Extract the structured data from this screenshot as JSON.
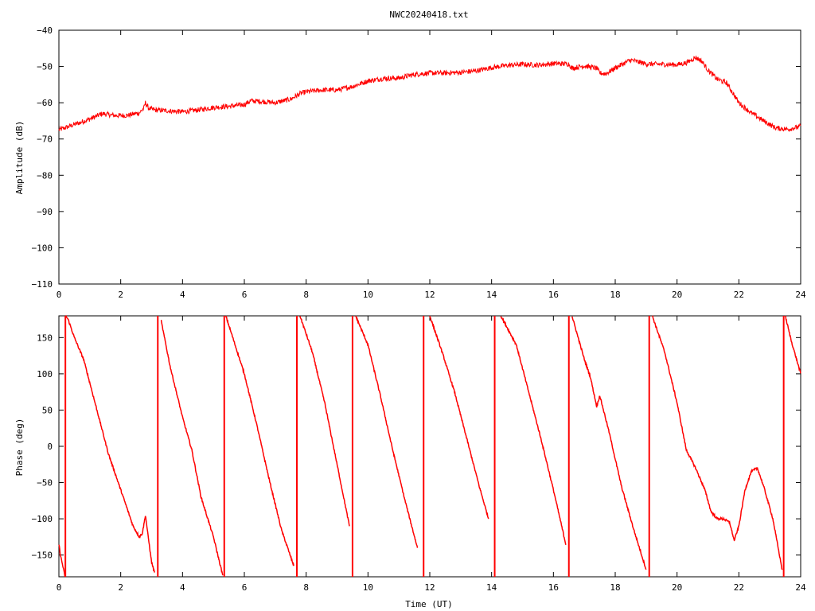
{
  "title": "NWC20240418.txt",
  "colors": {
    "series": "#ff0000",
    "frame": "#000000",
    "background": "#ffffff"
  },
  "chart_data": [
    {
      "type": "line",
      "panel": "top",
      "title": "NWC20240418.txt",
      "xlabel": "",
      "ylabel": "Amplitude (dB)",
      "xlim": [
        0,
        24
      ],
      "ylim": [
        -110,
        -40
      ],
      "xticks": [
        "0",
        "2",
        "4",
        "6",
        "8",
        "10",
        "12",
        "14",
        "16",
        "18",
        "20",
        "22",
        "24"
      ],
      "yticks": [
        "-40",
        "-50",
        "-60",
        "-70",
        "-80",
        "-90",
        "-100",
        "-110"
      ],
      "grid": false,
      "x": [
        0,
        0.5,
        1.0,
        1.4,
        1.8,
        2.2,
        2.6,
        2.75,
        2.8,
        2.9,
        3.1,
        3.5,
        4.0,
        4.5,
        5.0,
        5.5,
        6.0,
        6.2,
        6.5,
        7.0,
        7.5,
        7.8,
        8.0,
        8.5,
        9.0,
        9.5,
        10.0,
        10.5,
        11.0,
        11.5,
        12.0,
        12.5,
        13.0,
        13.5,
        14.0,
        14.5,
        15.0,
        15.5,
        16.0,
        16.5,
        16.6,
        17.0,
        17.4,
        17.5,
        17.7,
        18.0,
        18.5,
        19.0,
        19.5,
        20.0,
        20.3,
        20.6,
        20.8,
        21.0,
        21.3,
        21.6,
        22.0,
        22.4,
        22.8,
        23.2,
        23.6,
        24.0
      ],
      "values": [
        -67.5,
        -66,
        -64.5,
        -63,
        -63.5,
        -63.5,
        -62.8,
        -61.5,
        -60.0,
        -61.5,
        -62.0,
        -62.2,
        -62.5,
        -62.0,
        -61.3,
        -61.0,
        -60.5,
        -59.5,
        -59.6,
        -60.0,
        -59.0,
        -57.5,
        -57.0,
        -56.5,
        -56.5,
        -55.5,
        -54.0,
        -53.3,
        -53.2,
        -52.2,
        -51.8,
        -51.8,
        -51.6,
        -51.2,
        -50.3,
        -49.7,
        -49.4,
        -49.6,
        -49.2,
        -49.3,
        -50.5,
        -49.8,
        -50.5,
        -51.8,
        -52.0,
        -50.4,
        -48.2,
        -49.3,
        -49.4,
        -49.5,
        -49.0,
        -47.5,
        -48.5,
        -51.0,
        -53.5,
        -54.5,
        -60.0,
        -62.8,
        -65.0,
        -67.0,
        -67.3,
        -66.5
      ],
      "noise": 0.7
    },
    {
      "type": "line",
      "panel": "bottom",
      "title": "",
      "xlabel": "Time (UT)",
      "ylabel": "Phase (deg)",
      "xlim": [
        0,
        24
      ],
      "ylim": [
        -180,
        180
      ],
      "xticks": [
        "0",
        "2",
        "4",
        "6",
        "8",
        "10",
        "12",
        "14",
        "16",
        "18",
        "20",
        "22",
        "24"
      ],
      "yticks": [
        "150",
        "100",
        "50",
        "0",
        "-50",
        "-100",
        "-150"
      ],
      "grid": false,
      "wrap_at": [
        -180,
        180
      ],
      "x": [
        0,
        0.05,
        0.2,
        0.22,
        0.3,
        0.5,
        0.8,
        1.2,
        1.6,
        2.0,
        2.4,
        2.6,
        2.7,
        2.8,
        2.85,
        3.0,
        3.1,
        3.3,
        3.6,
        4.0,
        4.3,
        4.6,
        5.0,
        5.3,
        5.4,
        5.7,
        6.0,
        6.4,
        6.8,
        7.2,
        7.6,
        7.8,
        8.2,
        8.6,
        9.0,
        9.4,
        9.6,
        10.0,
        10.4,
        10.8,
        11.2,
        11.6,
        12.0,
        12.4,
        12.8,
        13.2,
        13.6,
        13.9,
        14.3,
        14.8,
        15.2,
        15.6,
        16.0,
        16.4,
        16.6,
        17.0,
        17.2,
        17.4,
        17.5,
        17.8,
        18.2,
        18.6,
        19.0,
        19.2,
        19.6,
        20.0,
        20.3,
        20.6,
        20.9,
        21.1,
        21.3,
        21.5,
        21.7,
        21.85,
        22.0,
        22.2,
        22.4,
        22.6,
        22.8,
        23.1,
        23.4,
        23.5,
        23.7,
        24.0
      ],
      "values": [
        -135,
        -150,
        -180,
        180,
        175,
        150,
        120,
        55,
        -10,
        -60,
        -110,
        -125,
        -120,
        -95,
        -112,
        -160,
        -175,
        175,
        110,
        40,
        -5,
        -70,
        -125,
        -178,
        180,
        140,
        100,
        30,
        -45,
        -115,
        -165,
        180,
        130,
        60,
        -25,
        -110,
        180,
        140,
        70,
        -5,
        -75,
        -140,
        180,
        130,
        75,
        10,
        -55,
        -100,
        180,
        140,
        75,
        10,
        -60,
        -135,
        180,
        120,
        95,
        55,
        70,
        20,
        -55,
        -115,
        -170,
        180,
        130,
        60,
        -5,
        -30,
        -60,
        -90,
        -100,
        -100,
        -105,
        -130,
        -110,
        -60,
        -35,
        -30,
        -55,
        -100,
        -170,
        180,
        145,
        100
      ],
      "noise": 1.5
    }
  ]
}
